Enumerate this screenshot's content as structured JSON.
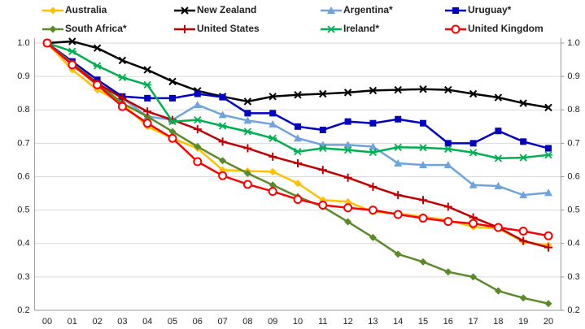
{
  "chart_data": {
    "type": "line",
    "categories": [
      "00",
      "01",
      "02",
      "03",
      "04",
      "05",
      "06",
      "07",
      "08",
      "09",
      "10",
      "11",
      "12",
      "13",
      "14",
      "15",
      "16",
      "17",
      "18",
      "19",
      "20"
    ],
    "ylim": [
      0.2,
      1.0
    ],
    "yticks": [
      0.2,
      0.3,
      0.4,
      0.5,
      0.6,
      0.7,
      0.8,
      0.9,
      {
        "value": 1.0,
        "label": "1.0"
      }
    ],
    "y2lim": [
      0.2,
      1.0
    ],
    "y2ticks": [
      0.2,
      0.3,
      0.4,
      0.5,
      0.6,
      0.7,
      0.8,
      0.9,
      {
        "value": 1.0,
        "label": "1.0"
      }
    ],
    "grid": true,
    "series": [
      {
        "name": "Australia",
        "color": "#ffc000",
        "marker": "diamond",
        "values": [
          1.0,
          0.92,
          0.86,
          0.82,
          0.75,
          0.715,
          0.685,
          0.62,
          0.617,
          0.615,
          0.58,
          0.53,
          0.525,
          0.495,
          0.49,
          0.48,
          0.47,
          0.45,
          0.445,
          0.405,
          0.395
        ]
      },
      {
        "name": "New Zealand",
        "color": "#000000",
        "marker": "x",
        "values": [
          1.0,
          1.005,
          0.985,
          0.948,
          0.92,
          0.885,
          0.857,
          0.84,
          0.825,
          0.84,
          0.845,
          0.848,
          0.852,
          0.858,
          0.86,
          0.862,
          0.86,
          0.848,
          0.837,
          0.82,
          0.807
        ]
      },
      {
        "name": "Argentina*",
        "color": "#6fa3dc",
        "marker": "triangle",
        "values": [
          1.0,
          0.94,
          0.88,
          0.835,
          0.78,
          0.77,
          0.815,
          0.785,
          0.768,
          0.757,
          0.715,
          0.695,
          0.695,
          0.69,
          0.64,
          0.635,
          0.635,
          0.575,
          0.572,
          0.545,
          0.552
        ]
      },
      {
        "name": "Uruguay*",
        "color": "#0000c0",
        "marker": "square",
        "values": [
          1.0,
          0.945,
          0.89,
          0.84,
          0.835,
          0.835,
          0.848,
          0.838,
          0.79,
          0.79,
          0.75,
          0.74,
          0.765,
          0.76,
          0.772,
          0.76,
          0.7,
          0.7,
          0.737,
          0.705,
          0.685
        ]
      },
      {
        "name": "South Africa*",
        "color": "#5b8a2a",
        "marker": "diamond",
        "values": [
          1.0,
          0.94,
          0.88,
          0.82,
          0.78,
          0.735,
          0.69,
          0.648,
          0.61,
          0.575,
          0.54,
          0.51,
          0.465,
          0.418,
          0.368,
          0.345,
          0.315,
          0.3,
          0.258,
          0.237,
          0.22
        ]
      },
      {
        "name": "United States",
        "color": "#c00000",
        "marker": "plus",
        "values": [
          1.0,
          0.935,
          0.88,
          0.835,
          0.795,
          0.77,
          0.742,
          0.705,
          0.685,
          0.66,
          0.64,
          0.62,
          0.597,
          0.57,
          0.545,
          0.53,
          0.51,
          0.478,
          0.448,
          0.408,
          0.388
        ]
      },
      {
        "name": "Ireland*",
        "color": "#00b050",
        "marker": "star",
        "values": [
          1.0,
          0.975,
          0.932,
          0.897,
          0.875,
          0.765,
          0.77,
          0.752,
          0.735,
          0.715,
          0.675,
          0.685,
          0.68,
          0.673,
          0.688,
          0.687,
          0.683,
          0.672,
          0.655,
          0.657,
          0.665
        ]
      },
      {
        "name": "United Kingdom",
        "color": "#ff0000",
        "marker": "circle",
        "values": [
          1.0,
          0.935,
          0.875,
          0.81,
          0.76,
          0.715,
          0.645,
          0.603,
          0.577,
          0.556,
          0.532,
          0.515,
          0.507,
          0.5,
          0.487,
          0.476,
          0.466,
          0.46,
          0.448,
          0.437,
          0.423
        ]
      }
    ]
  }
}
